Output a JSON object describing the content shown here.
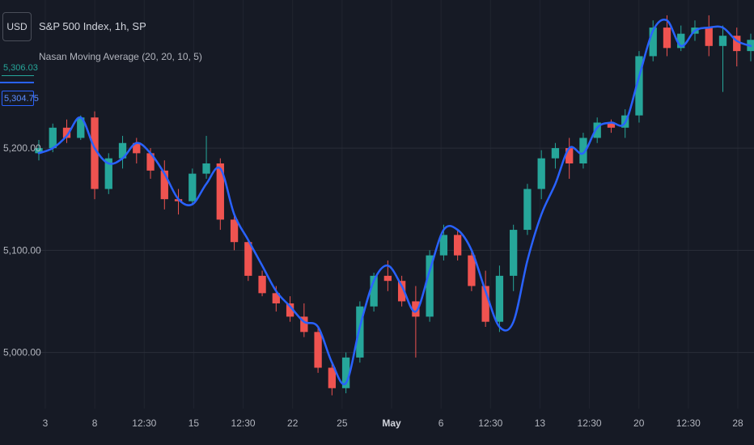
{
  "header": {
    "currency": "USD",
    "title": "S&P 500 Index, 1h, SP",
    "indicator": "Nasan Moving Average (20, 20, 10, 5)"
  },
  "price_tags": {
    "last_price": "5,306.03",
    "ma_value": "5,304.75"
  },
  "colors": {
    "background": "#161a25",
    "grid": "#2a2e39",
    "up": "#26a69a",
    "down": "#ef5350",
    "ma_line": "#2962ff",
    "text": "#b2b5be"
  },
  "chart_data": {
    "type": "line",
    "y_ticks": [
      {
        "value": 5200,
        "label": "5,200.00"
      },
      {
        "value": 5100,
        "label": "5,100.00"
      },
      {
        "value": 5000,
        "label": "5,000.00"
      }
    ],
    "x_ticks": [
      "3",
      "8",
      "12:30",
      "15",
      "12:30",
      "22",
      "25",
      "May",
      "6",
      "12:30",
      "13",
      "12:30",
      "20",
      "12:30",
      "28"
    ],
    "x_tick_bold": [
      false,
      false,
      false,
      false,
      false,
      false,
      false,
      true,
      false,
      false,
      false,
      false,
      false,
      false,
      false
    ],
    "ylim": [
      4945,
      5345
    ],
    "series": [
      {
        "type": "line",
        "values": [
          5195,
          5200,
          5212,
          5230,
          5200,
          5185,
          5190,
          5205,
          5195,
          5175,
          5150,
          5145,
          5165,
          5180,
          5135,
          5110,
          5085,
          5060,
          5045,
          5030,
          5025,
          4990,
          4970,
          5025,
          5070,
          5085,
          5065,
          5040,
          5080,
          5120,
          5120,
          5100,
          5060,
          5025,
          5030,
          5090,
          5135,
          5165,
          5200,
          5195,
          5220,
          5225,
          5225,
          5270,
          5315,
          5325,
          5300,
          5315,
          5318,
          5318,
          5305,
          5300
        ]
      },
      {
        "type": "candlestick",
        "x_count": 52,
        "ohlc": [
          [
            5195,
            5208,
            5188,
            5200
          ],
          [
            5200,
            5224,
            5196,
            5220
          ],
          [
            5220,
            5228,
            5205,
            5210
          ],
          [
            5210,
            5232,
            5208,
            5230
          ],
          [
            5230,
            5236,
            5150,
            5160
          ],
          [
            5160,
            5195,
            5155,
            5190
          ],
          [
            5190,
            5212,
            5180,
            5205
          ],
          [
            5205,
            5210,
            5185,
            5195
          ],
          [
            5195,
            5200,
            5170,
            5178
          ],
          [
            5178,
            5188,
            5140,
            5150
          ],
          [
            5150,
            5160,
            5135,
            5148
          ],
          [
            5148,
            5180,
            5145,
            5175
          ],
          [
            5175,
            5212,
            5170,
            5185
          ],
          [
            5185,
            5190,
            5120,
            5130
          ],
          [
            5130,
            5135,
            5100,
            5108
          ],
          [
            5108,
            5110,
            5070,
            5075
          ],
          [
            5075,
            5080,
            5055,
            5058
          ],
          [
            5058,
            5065,
            5040,
            5048
          ],
          [
            5048,
            5055,
            5030,
            5035
          ],
          [
            5035,
            5048,
            5015,
            5020
          ],
          [
            5020,
            5025,
            4980,
            4985
          ],
          [
            4985,
            4990,
            4958,
            4965
          ],
          [
            4965,
            5000,
            4960,
            4995
          ],
          [
            4995,
            5050,
            4990,
            5045
          ],
          [
            5045,
            5078,
            5040,
            5075
          ],
          [
            5075,
            5090,
            5060,
            5070
          ],
          [
            5070,
            5075,
            5045,
            5050
          ],
          [
            5050,
            5065,
            4995,
            5035
          ],
          [
            5035,
            5100,
            5030,
            5095
          ],
          [
            5095,
            5125,
            5090,
            5115
          ],
          [
            5115,
            5120,
            5090,
            5095
          ],
          [
            5095,
            5100,
            5060,
            5065
          ],
          [
            5065,
            5080,
            5025,
            5030
          ],
          [
            5030,
            5085,
            5020,
            5075
          ],
          [
            5075,
            5125,
            5060,
            5120
          ],
          [
            5120,
            5165,
            5115,
            5160
          ],
          [
            5160,
            5198,
            5150,
            5190
          ],
          [
            5190,
            5205,
            5180,
            5200
          ],
          [
            5200,
            5210,
            5170,
            5185
          ],
          [
            5185,
            5215,
            5180,
            5210
          ],
          [
            5210,
            5230,
            5205,
            5225
          ],
          [
            5225,
            5228,
            5215,
            5220
          ],
          [
            5220,
            5238,
            5210,
            5232
          ],
          [
            5232,
            5295,
            5225,
            5290
          ],
          [
            5290,
            5325,
            5285,
            5318
          ],
          [
            5318,
            5330,
            5290,
            5298
          ],
          [
            5298,
            5320,
            5295,
            5312
          ],
          [
            5312,
            5325,
            5305,
            5318
          ],
          [
            5318,
            5330,
            5290,
            5300
          ],
          [
            5300,
            5320,
            5255,
            5310
          ],
          [
            5310,
            5318,
            5280,
            5295
          ],
          [
            5295,
            5312,
            5285,
            5306
          ]
        ]
      }
    ],
    "xlabel": "",
    "ylabel": "",
    "grid": true
  }
}
